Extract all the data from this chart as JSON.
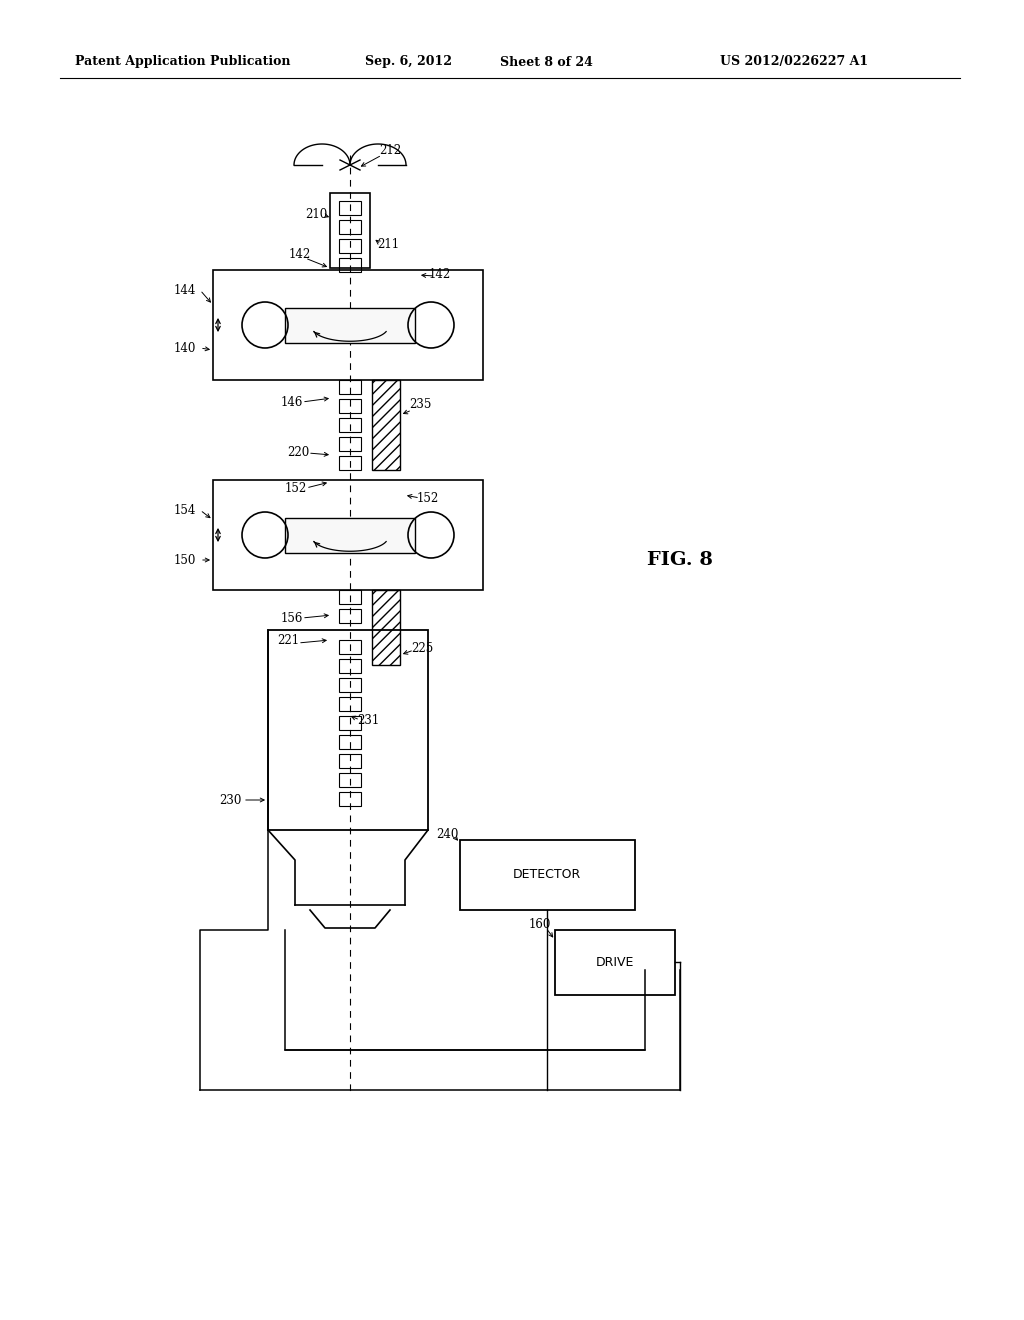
{
  "bg_color": "#ffffff",
  "header_left": "Patent Application Publication",
  "header_date": "Sep. 6, 2012",
  "header_sheet": "Sheet 8 of 24",
  "header_patent": "US 2012/0226227 A1",
  "fig_label": "FIG. 8",
  "lc": "#000000",
  "lfs": 9
}
